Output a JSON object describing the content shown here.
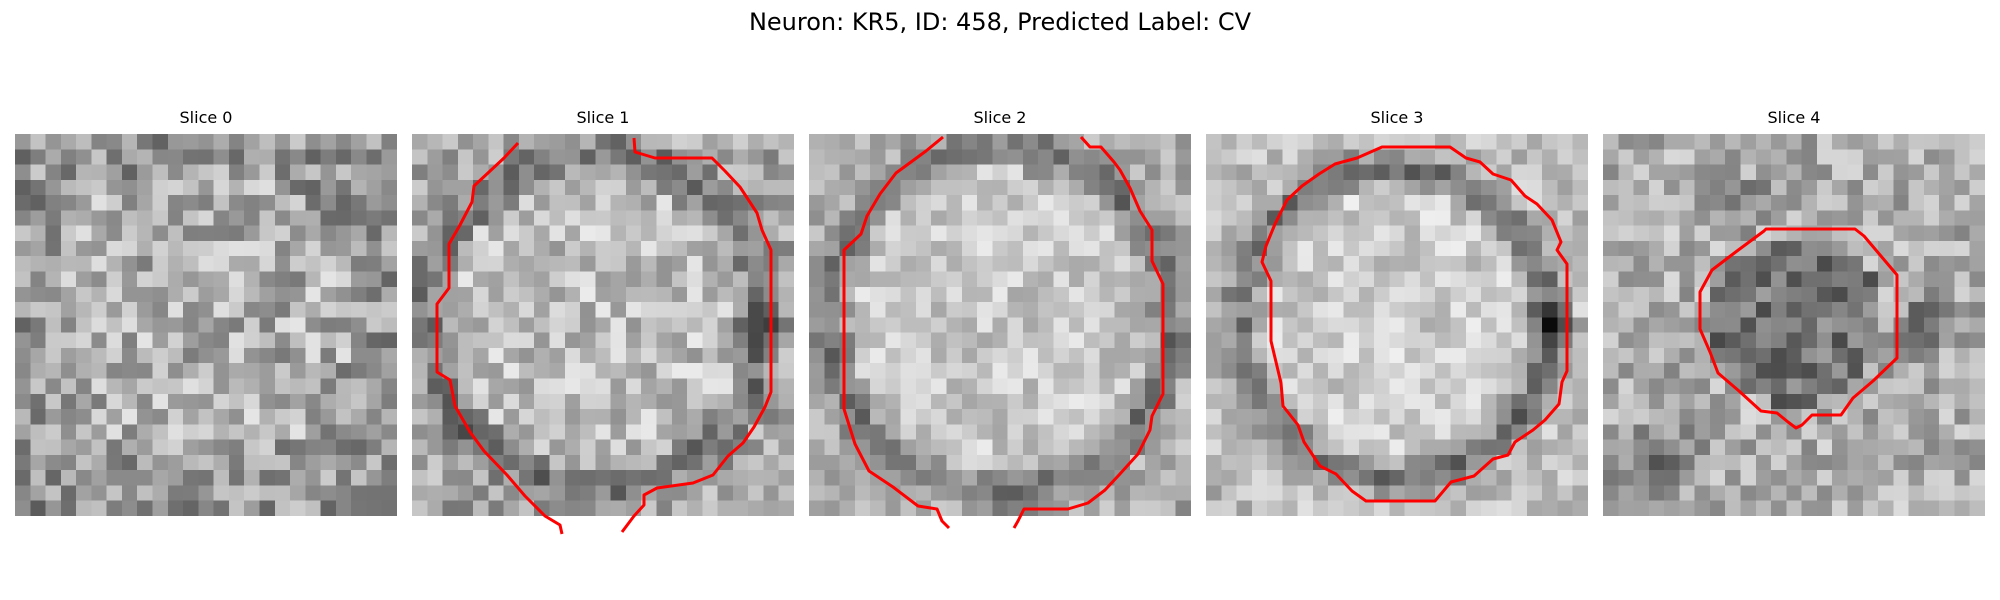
{
  "figure": {
    "title": "Neuron: KR5, ID: 458, Predicted Label: CV"
  },
  "colors": {
    "contour": "#ff0000",
    "background": "#ffffff"
  },
  "slices": [
    {
      "title": "Slice 0",
      "has_contour": false
    },
    {
      "title": "Slice 1",
      "has_contour": true
    },
    {
      "title": "Slice 2",
      "has_contour": true
    },
    {
      "title": "Slice 3",
      "has_contour": true
    },
    {
      "title": "Slice 4",
      "has_contour": true
    }
  ]
}
